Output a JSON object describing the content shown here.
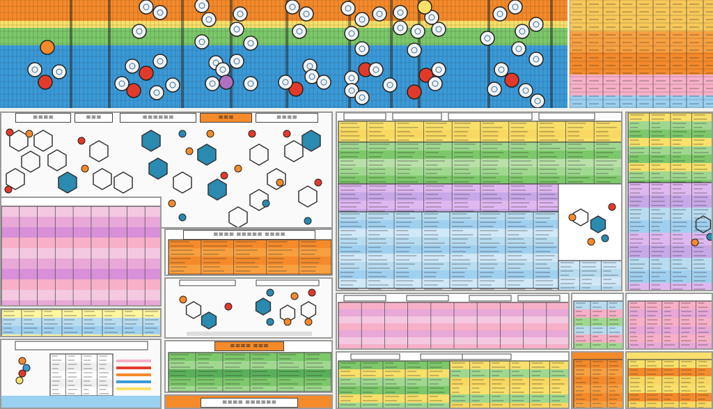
{
  "image": {
    "kind": "colorful-dense-chart-collage",
    "text_is_illegible": true
  },
  "bands": {
    "top_left": [
      "#f58a2a",
      "#f8e06a",
      "#7cc86a",
      "#3a9ad8"
    ],
    "top_right": [
      "#f8c85a",
      "#f8a040",
      "#f58a2a",
      "#f7b0c8",
      "#9ad0f0"
    ]
  },
  "panels": [
    {
      "id": "top-molecule-board"
    },
    {
      "id": "molecule-structures-left"
    },
    {
      "id": "pink-data-table"
    },
    {
      "id": "orange-data-table"
    },
    {
      "id": "small-molecules-panel"
    },
    {
      "id": "green-data-table"
    },
    {
      "id": "center-color-table"
    },
    {
      "id": "right-color-table"
    },
    {
      "id": "bottom-pink-table"
    },
    {
      "id": "bottom-mixed-table"
    }
  ],
  "colors": {
    "orange": "#f58a2a",
    "yellow": "#f8e06a",
    "green": "#7cc86a",
    "blue": "#3a9ad8",
    "pink": "#e47ab8",
    "magenta": "#c85ac8",
    "red": "#e23a2a",
    "teal": "#2a8ab0"
  }
}
